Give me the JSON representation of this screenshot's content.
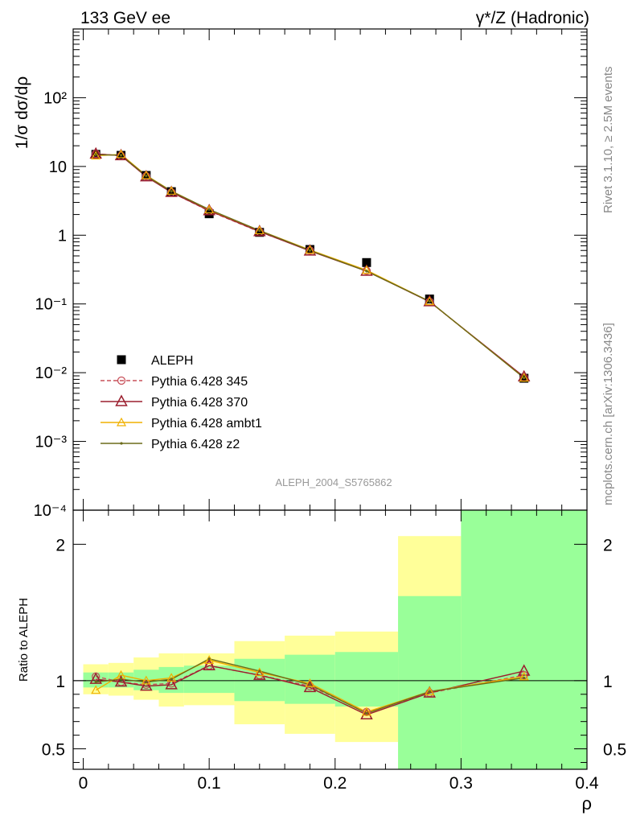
{
  "header": {
    "left": "133 GeV ee",
    "right": "γ*/Z (Hadronic)"
  },
  "side_labels": {
    "rivet": "Rivet 3.1.10, ≥ 2.5M events",
    "mcplots": "mcplots.cern.ch [arXiv:1306.3436]"
  },
  "analysis_tag": "ALEPH_2004_S5765862",
  "colors": {
    "data": "#000000",
    "p345": "#c8505a",
    "p370": "#9b1f2e",
    "ambt1": "#f0b000",
    "z2": "#6b6b1a",
    "band_green": "#99ff99",
    "band_yellow": "#ffff99"
  },
  "chart_data": [
    {
      "type": "scatter",
      "panel": "main",
      "ylabel": "1/σ dσ/dρ",
      "yscale": "log",
      "ylim": [
        0.0001,
        1000
      ],
      "xlim": [
        -0.008,
        0.4
      ],
      "ytick_labels": [
        "10⁻⁴",
        "10⁻³",
        "10⁻²",
        "10⁻¹",
        "1",
        "10",
        "10²"
      ],
      "legend_placement": "lower-left",
      "x": [
        0.01,
        0.03,
        0.05,
        0.07,
        0.1,
        0.14,
        0.18,
        0.225,
        0.275,
        0.35
      ],
      "series": [
        {
          "name": "ALEPH",
          "style": "data",
          "y": [
            15.0,
            14.5,
            7.4,
            4.3,
            2.05,
            1.1,
            0.62,
            0.4,
            0.118,
            0.0083
          ]
        },
        {
          "name": "Pythia 6.428 345",
          "style": "p345",
          "y": [
            15.3,
            14.3,
            7.2,
            4.2,
            2.25,
            1.12,
            0.6,
            0.305,
            0.108,
            0.0085
          ]
        },
        {
          "name": "Pythia 6.428 370",
          "style": "p370",
          "y": [
            15.2,
            14.4,
            7.1,
            4.2,
            2.28,
            1.13,
            0.59,
            0.3,
            0.108,
            0.0087
          ]
        },
        {
          "name": "Pythia 6.428 ambt1",
          "style": "ambt1",
          "y": [
            14.3,
            15.0,
            7.4,
            4.4,
            2.35,
            1.17,
            0.61,
            0.31,
            0.109,
            0.0084
          ]
        },
        {
          "name": "Pythia 6.428 z2",
          "style": "z2",
          "y": [
            14.8,
            14.6,
            7.3,
            4.35,
            2.37,
            1.17,
            0.6,
            0.3,
            0.109,
            0.0084
          ]
        }
      ]
    },
    {
      "type": "line",
      "panel": "ratio",
      "ylabel": "Ratio to ALEPH",
      "xlabel": "ρ",
      "ylim": [
        0.35,
        2.25
      ],
      "xlim": [
        -0.008,
        0.4
      ],
      "ytick_labels": [
        "0.5",
        "1",
        "2"
      ],
      "xtick_labels": [
        "0",
        "0.1",
        "0.2",
        "0.3",
        "0.4"
      ],
      "bands": {
        "edges": [
          0.0,
          0.02,
          0.04,
          0.06,
          0.08,
          0.12,
          0.16,
          0.2,
          0.25,
          0.3,
          0.4
        ],
        "green_low": [
          0.95,
          0.95,
          0.93,
          0.91,
          0.91,
          0.85,
          0.83,
          0.81,
          0.35,
          0.35
        ],
        "green_high": [
          1.06,
          1.06,
          1.08,
          1.1,
          1.11,
          1.16,
          1.19,
          1.21,
          1.62,
          2.25
        ],
        "yellow_low": [
          0.9,
          0.89,
          0.86,
          0.81,
          0.82,
          0.68,
          0.61,
          0.55,
          0.35,
          0.35
        ],
        "yellow_high": [
          1.12,
          1.13,
          1.17,
          1.2,
          1.2,
          1.29,
          1.33,
          1.36,
          2.06,
          2.25
        ]
      },
      "x": [
        0.01,
        0.03,
        0.05,
        0.07,
        0.1,
        0.14,
        0.18,
        0.225,
        0.275,
        0.35
      ],
      "series": [
        {
          "name": "Pythia 6.428 345",
          "style": "p345",
          "y": [
            1.03,
            0.99,
            0.97,
            0.98,
            1.11,
            1.04,
            0.96,
            0.77,
            0.91,
            1.04
          ]
        },
        {
          "name": "Pythia 6.428 370",
          "style": "p370",
          "y": [
            1.01,
            0.99,
            0.96,
            0.97,
            1.11,
            1.04,
            0.95,
            0.75,
            0.91,
            1.07
          ]
        },
        {
          "name": "Pythia 6.428 ambt1",
          "style": "ambt1",
          "y": [
            0.93,
            1.04,
            1.0,
            1.02,
            1.15,
            1.06,
            0.98,
            0.77,
            0.92,
            1.03
          ]
        },
        {
          "name": "Pythia 6.428 z2",
          "style": "z2",
          "y": [
            0.99,
            1.01,
            0.99,
            1.01,
            1.16,
            1.07,
            0.97,
            0.76,
            0.92,
            1.02
          ]
        }
      ]
    }
  ]
}
